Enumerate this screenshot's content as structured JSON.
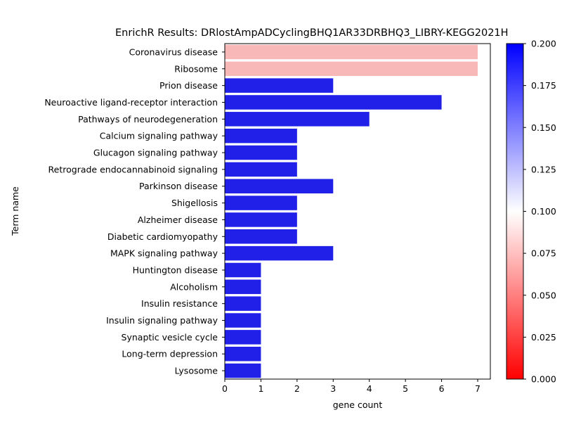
{
  "chart_data": {
    "type": "bar",
    "orientation": "horizontal",
    "title": "EnrichR Results: DRlostAmpADCyclingBHQ1AR33DRBHQ3_LIBRY-KEGG2021H",
    "xlabel": "gene count",
    "ylabel": "Term name",
    "xlim": [
      0,
      7.35
    ],
    "xticks": [
      0,
      1,
      2,
      3,
      4,
      5,
      6,
      7
    ],
    "categories": [
      "Coronavirus disease",
      "Ribosome",
      "Prion disease",
      "Neuroactive ligand-receptor interaction",
      "Pathways of neurodegeneration",
      "Calcium signaling pathway",
      "Glucagon signaling pathway",
      "Retrograde endocannabinoid signaling",
      "Parkinson disease",
      "Shigellosis",
      "Alzheimer disease",
      "Diabetic cardiomyopathy",
      "MAPK signaling pathway",
      "Huntington disease",
      "Alcoholism",
      "Insulin resistance",
      "Insulin signaling pathway",
      "Synaptic vesicle cycle",
      "Long-term depression",
      "Lysosome"
    ],
    "values": [
      7,
      7,
      3,
      6,
      4,
      2,
      2,
      2,
      3,
      2,
      2,
      2,
      3,
      1,
      1,
      1,
      1,
      1,
      1,
      1
    ],
    "color_values": [
      0.07,
      0.07,
      0.2,
      0.2,
      0.2,
      0.2,
      0.2,
      0.2,
      0.2,
      0.2,
      0.2,
      0.2,
      0.2,
      0.2,
      0.2,
      0.2,
      0.2,
      0.2,
      0.2,
      0.2
    ],
    "colorbar": {
      "range": [
        0.0,
        0.2
      ],
      "ticks": [
        "0.000",
        "0.025",
        "0.050",
        "0.075",
        "0.100",
        "0.125",
        "0.150",
        "0.175",
        "0.200"
      ],
      "colormap": [
        "#ff0000",
        "#ffffff",
        "#0000ff"
      ]
    },
    "grid": false,
    "bar_colors": {
      "low": "#f8b8b8",
      "high": "#2020e8"
    }
  }
}
